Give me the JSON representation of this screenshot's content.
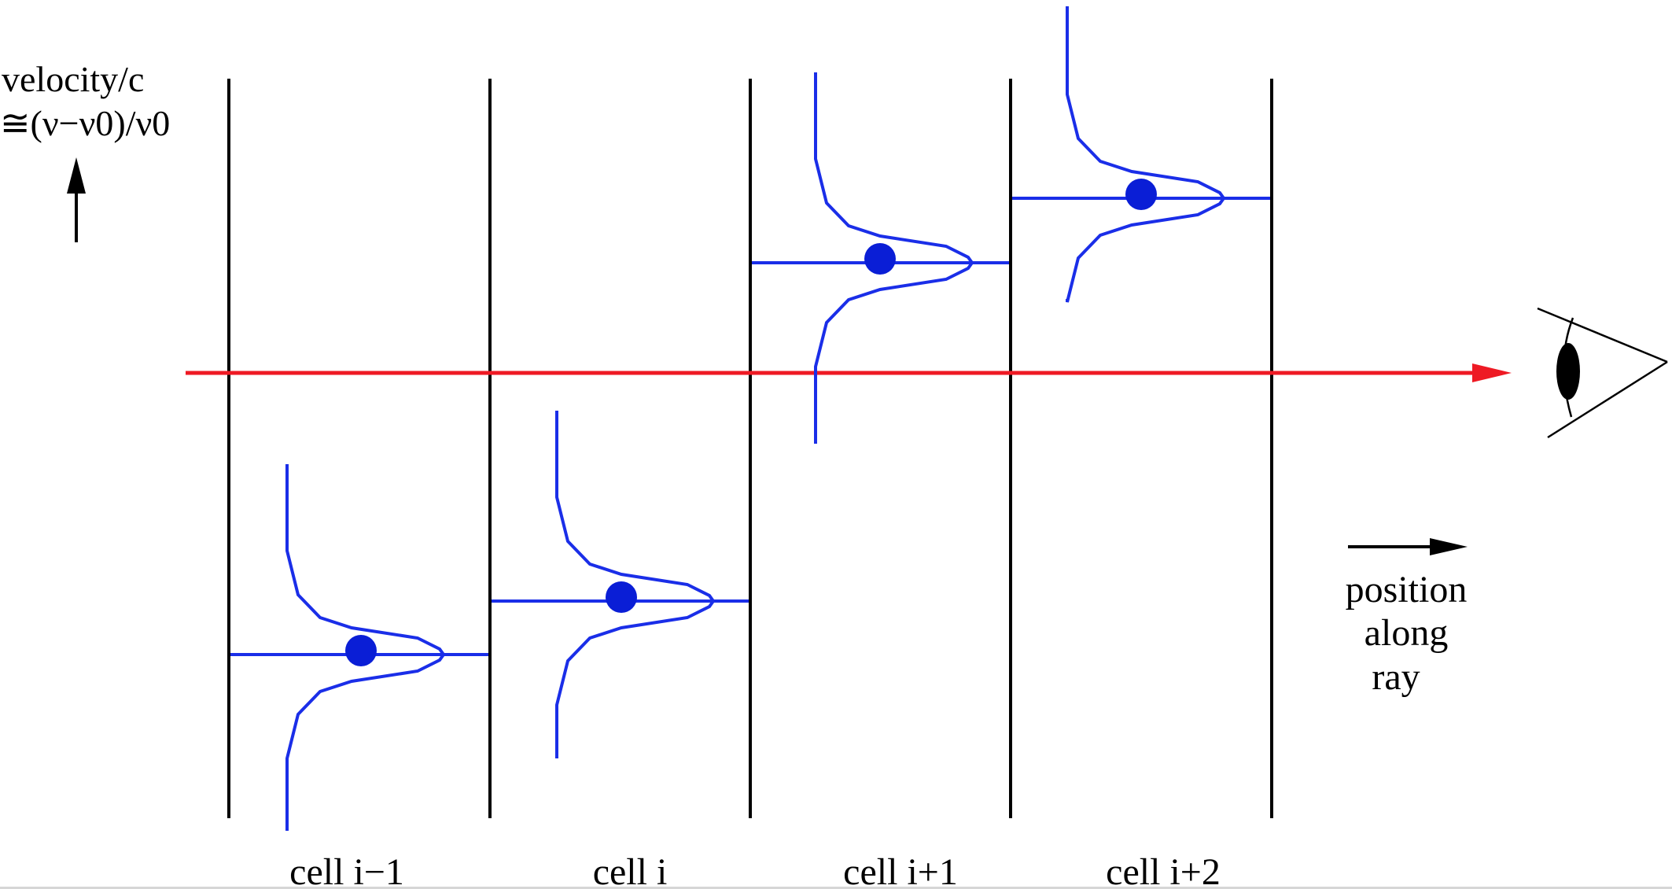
{
  "axis": {
    "label_line1": "velocity/c",
    "label_line2": "≅(ν−ν0)/ν0"
  },
  "cells": [
    {
      "label": "cell i−1"
    },
    {
      "label": "cell i"
    },
    {
      "label": "cell i+1"
    },
    {
      "label": "cell i+2"
    }
  ],
  "position_label": {
    "line1": "position",
    "line2": "along",
    "line3": "ray"
  },
  "colors": {
    "profile": "#1a2ee8",
    "ray": "#ee1a24",
    "wall": "#000000",
    "dot": "#0a1ed6"
  },
  "icons": {
    "observer": "eye-icon"
  }
}
